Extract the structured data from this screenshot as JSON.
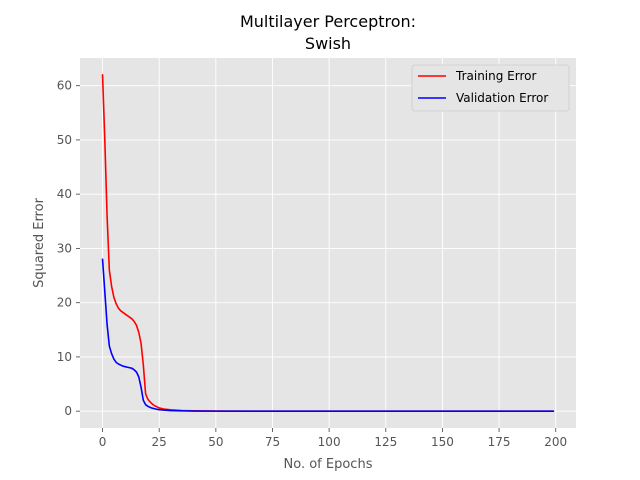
{
  "chart_data": {
    "type": "line",
    "title": [
      "Multilayer Perceptron:",
      "Swish"
    ],
    "xlabel": "No. of Epochs",
    "ylabel": "Squared Error",
    "xlim": [
      -9.95,
      208.95
    ],
    "ylim": [
      -3.1,
      65.1
    ],
    "xticks": [
      0,
      25,
      50,
      75,
      100,
      125,
      150,
      175,
      200
    ],
    "yticks": [
      0,
      10,
      20,
      30,
      40,
      50,
      60
    ],
    "grid": true,
    "legend_position": "top-right",
    "series": [
      {
        "name": "Training Error",
        "color": "#ff0000",
        "x": [
          0,
          1,
          2,
          3,
          4,
          5,
          6,
          7,
          8,
          9,
          10,
          11,
          12,
          13,
          14,
          15,
          16,
          17,
          18,
          19,
          20,
          21,
          22,
          23,
          24,
          25,
          27,
          30,
          35,
          40,
          50,
          75,
          100,
          125,
          150,
          175,
          199
        ],
        "y": [
          62,
          50,
          36,
          26,
          23,
          21,
          19.8,
          19,
          18.5,
          18.2,
          17.9,
          17.6,
          17.3,
          17,
          16.5,
          15.8,
          14.5,
          12.5,
          8.5,
          3.2,
          2.2,
          1.7,
          1.3,
          1.0,
          0.8,
          0.6,
          0.4,
          0.25,
          0.12,
          0.06,
          0.02,
          0.0,
          0.0,
          0.0,
          0.0,
          0.0,
          0.0
        ]
      },
      {
        "name": "Validation Error",
        "color": "#0000ff",
        "x": [
          0,
          1,
          2,
          3,
          4,
          5,
          6,
          7,
          8,
          9,
          10,
          11,
          12,
          13,
          14,
          15,
          16,
          17,
          18,
          19,
          20,
          21,
          22,
          23,
          24,
          25,
          27,
          30,
          35,
          40,
          50,
          75,
          100,
          125,
          150,
          175,
          199
        ],
        "y": [
          28,
          22,
          16,
          12,
          10.6,
          9.6,
          9.0,
          8.7,
          8.5,
          8.3,
          8.2,
          8.1,
          8.0,
          7.9,
          7.6,
          7.2,
          6.3,
          4.4,
          2.0,
          1.2,
          0.9,
          0.7,
          0.55,
          0.45,
          0.35,
          0.28,
          0.2,
          0.12,
          0.06,
          0.03,
          0.01,
          0.0,
          0.0,
          0.0,
          0.0,
          0.0,
          0.0
        ]
      }
    ]
  }
}
